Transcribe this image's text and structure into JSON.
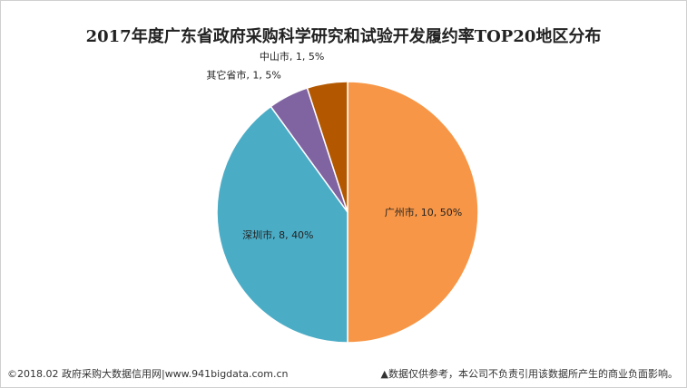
{
  "chart_data": {
    "type": "pie",
    "title": "2017年度广东省政府采购科学研究和试验开发履约率TOP20地区分布",
    "slices": [
      {
        "name": "广州市",
        "value": 10,
        "percent": 50,
        "label": "广州市, 10, 50%",
        "color": "#f79646"
      },
      {
        "name": "深圳市",
        "value": 8,
        "percent": 40,
        "label": "深圳市, 8, 40%",
        "color": "#4bacc6"
      },
      {
        "name": "其它省市",
        "value": 1,
        "percent": 5,
        "label": "其它省市, 1, 5%",
        "color": "#8064a2"
      },
      {
        "name": "中山市",
        "value": 1,
        "percent": 5,
        "label": "中山市, 1, 5%",
        "color": "#b35800"
      }
    ]
  },
  "footer": {
    "left": "©2018.02 政府采购大数据信用网|www.941bigdata.com.cn",
    "right": "▲数据仅供参考，本公司不负责引用该数据所产生的商业负面影响。"
  }
}
